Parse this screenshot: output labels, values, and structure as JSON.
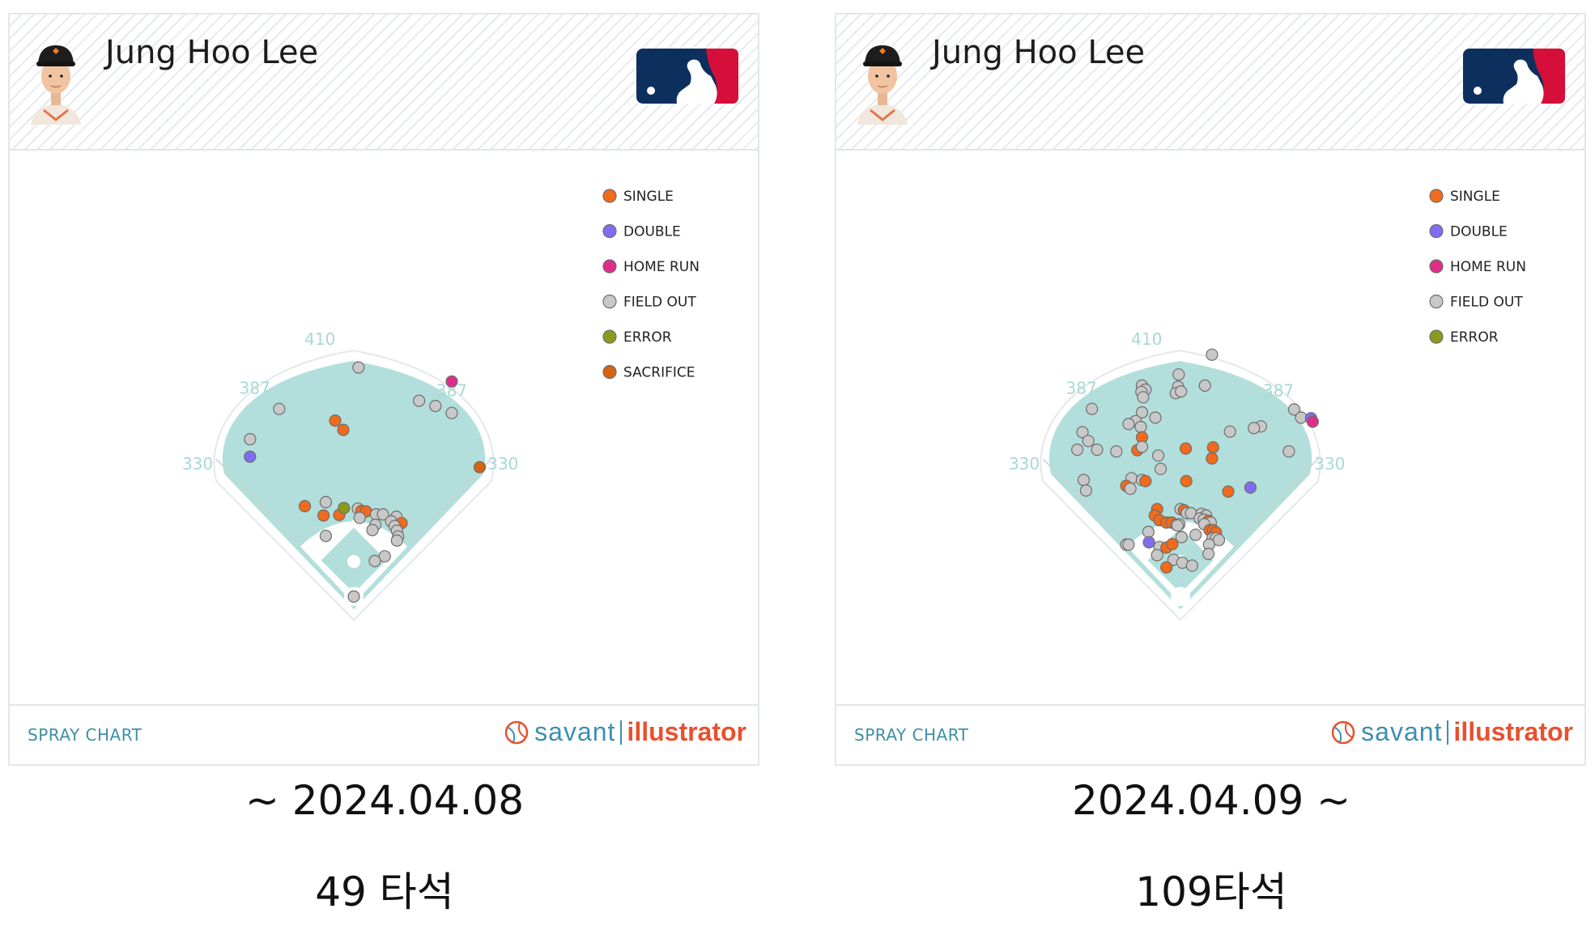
{
  "colors": {
    "SINGLE": "#f26a1b",
    "DOUBLE": "#7f6ef0",
    "HOME RUN": "#df2d8a",
    "FIELD OUT": "#c8c8c8",
    "ERROR": "#8c9a1c",
    "SACRIFICE": "#d5640f",
    "grass": "#b2dfdb",
    "fence_label": "#a8d9d5",
    "footer_label": "#3d8fa6"
  },
  "panels": [
    {
      "player_name": "Jung Hoo Lee",
      "footer_label": "SPRAY CHART",
      "brand_left": "savant",
      "brand_right": "illustrator",
      "caption_date": "~ 2024.04.08",
      "caption_count": "49 타석"
    },
    {
      "player_name": "Jung Hoo Lee",
      "footer_label": "SPRAY CHART",
      "brand_left": "savant",
      "brand_right": "illustrator",
      "caption_date": "2024.04.09 ~",
      "caption_count": "109타석"
    }
  ],
  "chart_data": [
    {
      "type": "scatter",
      "chart": "spray chart",
      "x_units": "horizontal position from home plate, feet",
      "y_units": "distance toward center field from home plate, feet",
      "fence_distances": [
        "330",
        "387",
        "410",
        "387",
        "330"
      ],
      "legend": [
        "SINGLE",
        "DOUBLE",
        "HOME RUN",
        "FIELD OUT",
        "ERROR",
        "SACRIFICE"
      ],
      "legend_position": "top-right",
      "points": [
        {
          "x": 8,
          "y": 393,
          "result": "FIELD OUT"
        },
        {
          "x": -128,
          "y": 322,
          "result": "FIELD OUT"
        },
        {
          "x": -178,
          "y": 270,
          "result": "FIELD OUT"
        },
        {
          "x": -178,
          "y": 240,
          "result": "DOUBLE"
        },
        {
          "x": -32,
          "y": 302,
          "result": "SINGLE"
        },
        {
          "x": -18,
          "y": 286,
          "result": "SINGLE"
        },
        {
          "x": 168,
          "y": 369,
          "result": "HOME RUN"
        },
        {
          "x": 112,
          "y": 336,
          "result": "FIELD OUT"
        },
        {
          "x": 140,
          "y": 327,
          "result": "FIELD OUT"
        },
        {
          "x": 168,
          "y": 315,
          "result": "FIELD OUT"
        },
        {
          "x": 216,
          "y": 222,
          "result": "SACRIFICE"
        },
        {
          "x": -84,
          "y": 155,
          "result": "SINGLE"
        },
        {
          "x": -48,
          "y": 162,
          "result": "FIELD OUT"
        },
        {
          "x": -52,
          "y": 139,
          "result": "SINGLE"
        },
        {
          "x": -25,
          "y": 140,
          "result": "SINGLE"
        },
        {
          "x": -17,
          "y": 152,
          "result": "ERROR"
        },
        {
          "x": 7,
          "y": 151,
          "result": "FIELD OUT"
        },
        {
          "x": 13,
          "y": 147,
          "result": "SINGLE"
        },
        {
          "x": 21,
          "y": 146,
          "result": "SINGLE"
        },
        {
          "x": 10,
          "y": 135,
          "result": "FIELD OUT"
        },
        {
          "x": 38,
          "y": 141,
          "result": "FIELD OUT"
        },
        {
          "x": 50,
          "y": 141,
          "result": "FIELD OUT"
        },
        {
          "x": 37,
          "y": 123,
          "result": "FIELD OUT"
        },
        {
          "x": 32,
          "y": 114,
          "result": "FIELD OUT"
        },
        {
          "x": 73,
          "y": 137,
          "result": "FIELD OUT"
        },
        {
          "x": 64,
          "y": 129,
          "result": "FIELD OUT"
        },
        {
          "x": 82,
          "y": 126,
          "result": "SINGLE"
        },
        {
          "x": 70,
          "y": 121,
          "result": "FIELD OUT"
        },
        {
          "x": 74,
          "y": 113,
          "result": "FIELD OUT"
        },
        {
          "x": 76,
          "y": 103,
          "result": "FIELD OUT"
        },
        {
          "x": 74,
          "y": 96,
          "result": "FIELD OUT"
        },
        {
          "x": -48,
          "y": 104,
          "result": "FIELD OUT"
        },
        {
          "x": 53,
          "y": 69,
          "result": "FIELD OUT"
        },
        {
          "x": 36,
          "y": 61,
          "result": "FIELD OUT"
        },
        {
          "x": 0,
          "y": 0,
          "result": "FIELD OUT"
        }
      ]
    },
    {
      "type": "scatter",
      "chart": "spray chart",
      "x_units": "horizontal position from home plate, feet",
      "y_units": "distance toward center field from home plate, feet",
      "fence_distances": [
        "330",
        "387",
        "410",
        "387",
        "330"
      ],
      "legend": [
        "SINGLE",
        "DOUBLE",
        "HOME RUN",
        "FIELD OUT",
        "ERROR"
      ],
      "legend_position": "top-right",
      "points": [
        {
          "x": 54,
          "y": 415,
          "result": "FIELD OUT"
        },
        {
          "x": -3,
          "y": 381,
          "result": "FIELD OUT"
        },
        {
          "x": -4,
          "y": 360,
          "result": "FIELD OUT"
        },
        {
          "x": -8,
          "y": 349,
          "result": "FIELD OUT"
        },
        {
          "x": 1,
          "y": 352,
          "result": "FIELD OUT"
        },
        {
          "x": 42,
          "y": 362,
          "result": "FIELD OUT"
        },
        {
          "x": -66,
          "y": 362,
          "result": "FIELD OUT"
        },
        {
          "x": -60,
          "y": 355,
          "result": "FIELD OUT"
        },
        {
          "x": -67,
          "y": 351,
          "result": "FIELD OUT"
        },
        {
          "x": -64,
          "y": 342,
          "result": "FIELD OUT"
        },
        {
          "x": -152,
          "y": 322,
          "result": "FIELD OUT"
        },
        {
          "x": -66,
          "y": 316,
          "result": "FIELD OUT"
        },
        {
          "x": -43,
          "y": 307,
          "result": "FIELD OUT"
        },
        {
          "x": -77,
          "y": 301,
          "result": "FIELD OUT"
        },
        {
          "x": -89,
          "y": 296,
          "result": "FIELD OUT"
        },
        {
          "x": -68,
          "y": 291,
          "result": "FIELD OUT"
        },
        {
          "x": -66,
          "y": 273,
          "result": "SINGLE"
        },
        {
          "x": -168,
          "y": 282,
          "result": "FIELD OUT"
        },
        {
          "x": -158,
          "y": 267,
          "result": "FIELD OUT"
        },
        {
          "x": -143,
          "y": 252,
          "result": "FIELD OUT"
        },
        {
          "x": -177,
          "y": 252,
          "result": "FIELD OUT"
        },
        {
          "x": -110,
          "y": 249,
          "result": "FIELD OUT"
        },
        {
          "x": -74,
          "y": 251,
          "result": "SINGLE"
        },
        {
          "x": -66,
          "y": 257,
          "result": "FIELD OUT"
        },
        {
          "x": -38,
          "y": 242,
          "result": "FIELD OUT"
        },
        {
          "x": -34,
          "y": 219,
          "result": "FIELD OUT"
        },
        {
          "x": 9,
          "y": 254,
          "result": "SINGLE"
        },
        {
          "x": 56,
          "y": 256,
          "result": "SINGLE"
        },
        {
          "x": 54,
          "y": 237,
          "result": "SINGLE"
        },
        {
          "x": 85,
          "y": 283,
          "result": "FIELD OUT"
        },
        {
          "x": 138,
          "y": 292,
          "result": "FIELD OUT"
        },
        {
          "x": 126,
          "y": 289,
          "result": "FIELD OUT"
        },
        {
          "x": 195,
          "y": 321,
          "result": "FIELD OUT"
        },
        {
          "x": 207,
          "y": 307,
          "result": "FIELD OUT"
        },
        {
          "x": 224,
          "y": 306,
          "result": "DOUBLE"
        },
        {
          "x": 227,
          "y": 300,
          "result": "HOME RUN"
        },
        {
          "x": 186,
          "y": 249,
          "result": "FIELD OUT"
        },
        {
          "x": -166,
          "y": 200,
          "result": "FIELD OUT"
        },
        {
          "x": -162,
          "y": 182,
          "result": "FIELD OUT"
        },
        {
          "x": -84,
          "y": 203,
          "result": "FIELD OUT"
        },
        {
          "x": -66,
          "y": 200,
          "result": "FIELD OUT"
        },
        {
          "x": -60,
          "y": 198,
          "result": "SINGLE"
        },
        {
          "x": -93,
          "y": 190,
          "result": "SINGLE"
        },
        {
          "x": -86,
          "y": 185,
          "result": "FIELD OUT"
        },
        {
          "x": 10,
          "y": 198,
          "result": "SINGLE"
        },
        {
          "x": 82,
          "y": 180,
          "result": "SINGLE"
        },
        {
          "x": 120,
          "y": 187,
          "result": "DOUBLE"
        },
        {
          "x": -40,
          "y": 150,
          "result": "SINGLE"
        },
        {
          "x": -44,
          "y": 139,
          "result": "SINGLE"
        },
        {
          "x": -36,
          "y": 131,
          "result": "SINGLE"
        },
        {
          "x": -24,
          "y": 127,
          "result": "SINGLE"
        },
        {
          "x": -15,
          "y": 127,
          "result": "SINGLE"
        },
        {
          "x": -7,
          "y": 123,
          "result": "FIELD OUT"
        },
        {
          "x": -2,
          "y": 124,
          "result": "FIELD OUT"
        },
        {
          "x": 0,
          "y": 150,
          "result": "FIELD OUT"
        },
        {
          "x": 6,
          "y": 148,
          "result": "SINGLE"
        },
        {
          "x": 11,
          "y": 143,
          "result": "FIELD OUT"
        },
        {
          "x": 18,
          "y": 143,
          "result": "FIELD OUT"
        },
        {
          "x": 36,
          "y": 142,
          "result": "FIELD OUT"
        },
        {
          "x": 44,
          "y": 139,
          "result": "FIELD OUT"
        },
        {
          "x": 33,
          "y": 134,
          "result": "FIELD OUT"
        },
        {
          "x": 40,
          "y": 132,
          "result": "FIELD OUT"
        },
        {
          "x": 48,
          "y": 130,
          "result": "SINGLE"
        },
        {
          "x": 52,
          "y": 127,
          "result": "FIELD OUT"
        },
        {
          "x": 41,
          "y": 124,
          "result": "FIELD OUT"
        },
        {
          "x": 50,
          "y": 114,
          "result": "SINGLE"
        },
        {
          "x": 56,
          "y": 114,
          "result": "SINGLE"
        },
        {
          "x": 61,
          "y": 110,
          "result": "SINGLE"
        },
        {
          "x": 55,
          "y": 100,
          "result": "FIELD OUT"
        },
        {
          "x": 61,
          "y": 100,
          "result": "FIELD OUT"
        },
        {
          "x": 66,
          "y": 97,
          "result": "FIELD OUT"
        },
        {
          "x": 26,
          "y": 106,
          "result": "FIELD OUT"
        },
        {
          "x": 49,
          "y": 89,
          "result": "FIELD OUT"
        },
        {
          "x": -5,
          "y": 122,
          "result": "FIELD OUT"
        },
        {
          "x": -55,
          "y": 111,
          "result": "FIELD OUT"
        },
        {
          "x": -54,
          "y": 93,
          "result": "DOUBLE"
        },
        {
          "x": -93,
          "y": 89,
          "result": "FIELD OUT"
        },
        {
          "x": -89,
          "y": 89,
          "result": "FIELD OUT"
        },
        {
          "x": -36,
          "y": 85,
          "result": "FIELD OUT"
        },
        {
          "x": -24,
          "y": 84,
          "result": "SINGLE"
        },
        {
          "x": -14,
          "y": 90,
          "result": "SINGLE"
        },
        {
          "x": 2,
          "y": 102,
          "result": "FIELD OUT"
        },
        {
          "x": -40,
          "y": 71,
          "result": "FIELD OUT"
        },
        {
          "x": -12,
          "y": 63,
          "result": "FIELD OUT"
        },
        {
          "x": 3,
          "y": 58,
          "result": "FIELD OUT"
        },
        {
          "x": -24,
          "y": 50,
          "result": "SINGLE"
        },
        {
          "x": 20,
          "y": 53,
          "result": "FIELD OUT"
        },
        {
          "x": 48,
          "y": 73,
          "result": "FIELD OUT"
        }
      ]
    }
  ]
}
